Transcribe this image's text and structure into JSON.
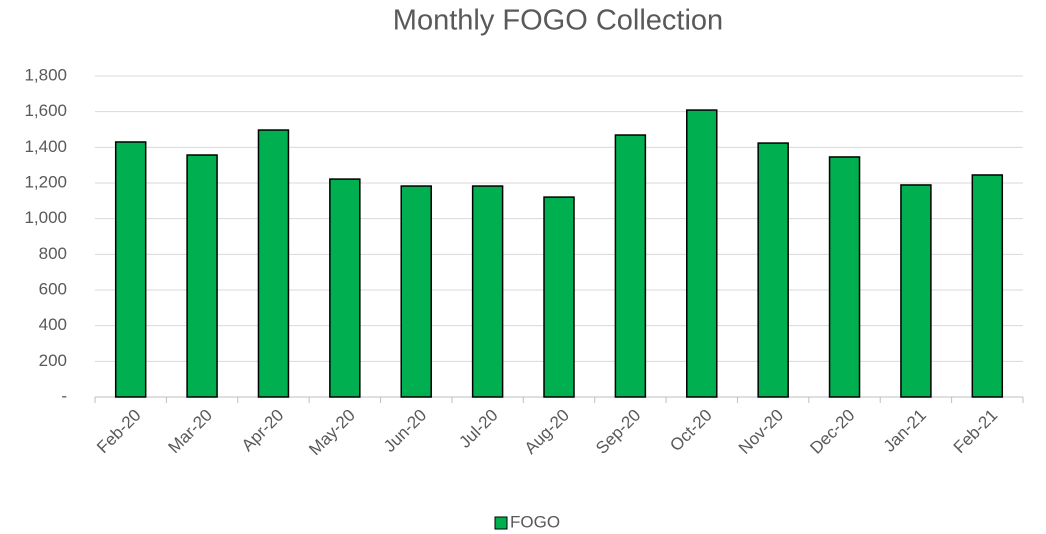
{
  "chart_data": {
    "type": "bar",
    "title": "Monthly FOGO Collection",
    "categories": [
      "Feb-20",
      "Mar-20",
      "Apr-20",
      "May-20",
      "Jun-20",
      "Jul-20",
      "Aug-20",
      "Sep-20",
      "Oct-20",
      "Nov-20",
      "Dec-20",
      "Jan-21",
      "Feb-21"
    ],
    "series": [
      {
        "name": "FOGO",
        "color": "#00b050",
        "values": [
          1430,
          1357,
          1497,
          1222,
          1183,
          1183,
          1121,
          1469,
          1609,
          1424,
          1346,
          1189,
          1245
        ]
      }
    ],
    "ylim": [
      0,
      1800
    ],
    "yticks": [
      {
        "value": 0,
        "label": "-"
      },
      200,
      400,
      600,
      800,
      {
        "value": 1000,
        "label": "1,000"
      },
      {
        "value": 1200,
        "label": "1,200"
      },
      {
        "value": 1400,
        "label": "1,400"
      },
      {
        "value": 1600,
        "label": "1,600"
      },
      {
        "value": 1800,
        "label": "1,800"
      }
    ],
    "grid": true,
    "legend": "bottom"
  }
}
